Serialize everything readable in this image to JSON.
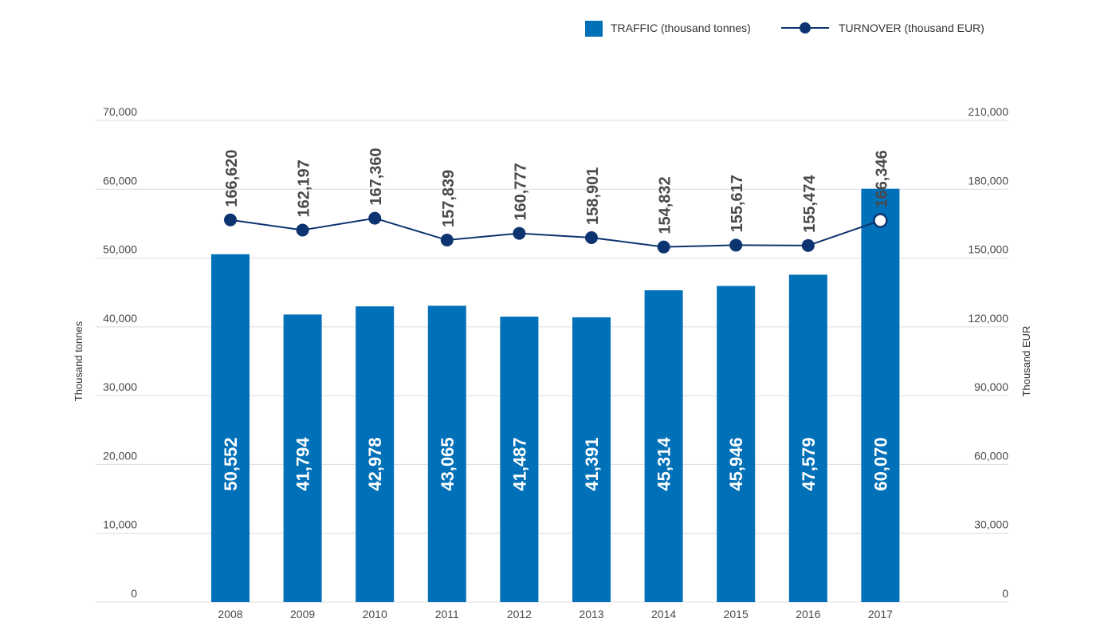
{
  "chart_data": {
    "type": "bar",
    "categories": [
      "2008",
      "2009",
      "2010",
      "2011",
      "2012",
      "2013",
      "2014",
      "2015",
      "2016",
      "2017"
    ],
    "series": [
      {
        "name": "TRAFFIC (thousand tonnes)",
        "type": "bar",
        "axis": "left",
        "color": "#0070b8",
        "values": [
          50552,
          41794,
          42978,
          43065,
          41487,
          41391,
          45314,
          45946,
          47579,
          60070
        ],
        "labels": [
          "50,552",
          "41,794",
          "42,978",
          "43,065",
          "41,487",
          "41,391",
          "45,314",
          "45,946",
          "47,579",
          "60,070"
        ]
      },
      {
        "name": "TURNOVER (thousand EUR)",
        "type": "line",
        "axis": "right",
        "color": "#0d3470",
        "values": [
          166620,
          162197,
          167360,
          157839,
          160777,
          158901,
          154832,
          155617,
          155474,
          166346
        ],
        "labels": [
          "166,620",
          "162,197",
          "167,360",
          "157,839",
          "160,777",
          "158,901",
          "154,832",
          "155,617",
          "155,474",
          "166,346"
        ]
      }
    ],
    "ylabel": "Thousand tonnes",
    "y2label": "Thousand EUR",
    "ylim": [
      0,
      70000
    ],
    "y2lim": [
      0,
      210000
    ],
    "yticks": [
      0,
      10000,
      20000,
      30000,
      40000,
      50000,
      60000,
      70000
    ],
    "ytick_labels": [
      "0",
      "10,000",
      "20,000",
      "30,000",
      "40,000",
      "50,000",
      "60,000",
      "70,000"
    ],
    "y2ticks": [
      0,
      30000,
      60000,
      90000,
      120000,
      150000,
      180000,
      210000
    ],
    "y2tick_labels": [
      "0",
      "30,000",
      "60,000",
      "90,000",
      "120,000",
      "150,000",
      "180,000",
      "210,000"
    ],
    "grid": true,
    "legend_position": "top-right",
    "highlight_last_point": true
  }
}
